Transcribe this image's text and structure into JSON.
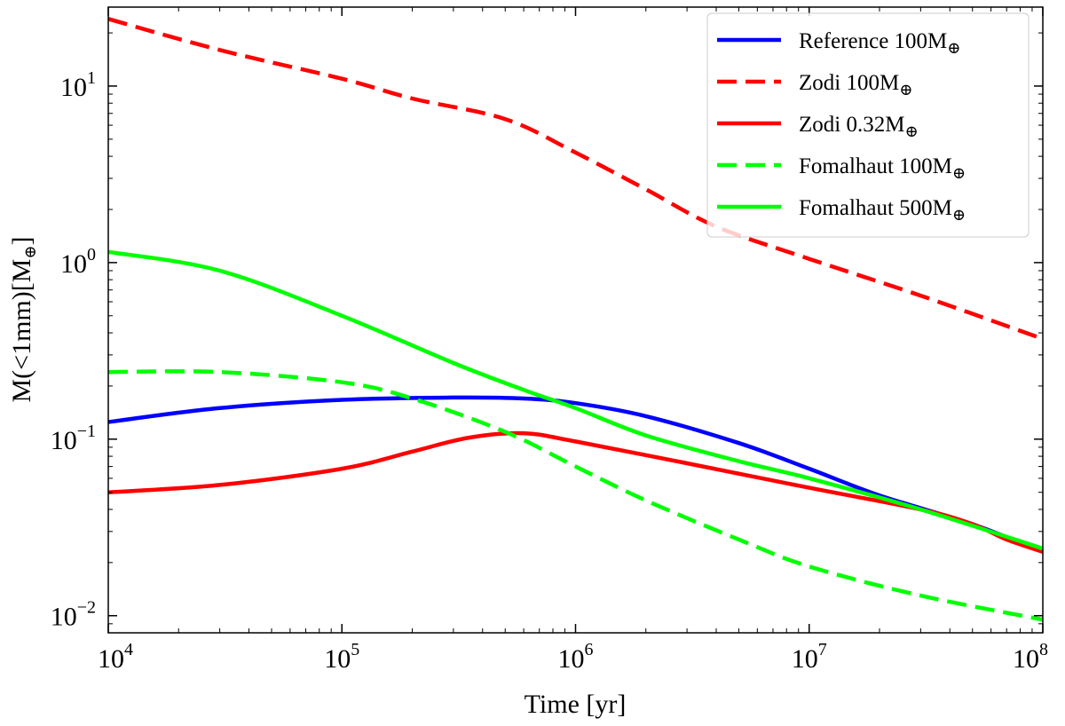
{
  "chart_data": {
    "type": "line",
    "xscale": "log",
    "yscale": "log",
    "xlim": [
      10000,
      100000000
    ],
    "ylim": [
      0.008,
      28
    ],
    "xlabel": "Time [yr]",
    "ylabel": {
      "prefix": "M(<1mm)[M",
      "sub": "⊕",
      "suffix": "]"
    },
    "x_ticks": [
      {
        "value": 10000,
        "base": "10",
        "exp": "4"
      },
      {
        "value": 100000,
        "base": "10",
        "exp": "5"
      },
      {
        "value": 1000000,
        "base": "10",
        "exp": "6"
      },
      {
        "value": 10000000,
        "base": "10",
        "exp": "7"
      },
      {
        "value": 100000000,
        "base": "10",
        "exp": "8"
      }
    ],
    "y_ticks": [
      {
        "value": 0.01,
        "base": "10",
        "exp": "−2"
      },
      {
        "value": 0.1,
        "base": "10",
        "exp": "−1"
      },
      {
        "value": 1,
        "base": "10",
        "exp": "0"
      },
      {
        "value": 10,
        "base": "10",
        "exp": "1"
      }
    ],
    "legend_position": "top-right",
    "series": [
      {
        "name": "Reference 100M⊕",
        "label_main": "Reference 100M",
        "label_sub": "⊕",
        "color": "#0000ff",
        "dash": "solid",
        "x": [
          10000,
          30000,
          100000,
          300000,
          600000,
          1000000,
          2000000,
          5000000,
          10000000,
          20000000,
          50000000,
          100000000
        ],
        "y": [
          0.125,
          0.15,
          0.167,
          0.172,
          0.17,
          0.16,
          0.135,
          0.095,
          0.068,
          0.048,
          0.033,
          0.023
        ]
      },
      {
        "name": "Zodi 100M⊕",
        "label_main": "Zodi 100M",
        "label_sub": "⊕",
        "color": "#ff0000",
        "dash": "dashed",
        "x": [
          10000,
          30000,
          100000,
          200000,
          500000,
          1000000,
          2000000,
          4000000,
          10000000,
          30000000,
          100000000
        ],
        "y": [
          24,
          16,
          11,
          8.5,
          6.5,
          4.2,
          2.6,
          1.6,
          1.05,
          0.65,
          0.37
        ]
      },
      {
        "name": "Zodi 0.32M⊕",
        "label_main": "Zodi 0.32M",
        "label_sub": "⊕",
        "color": "#ff0000",
        "dash": "solid",
        "x": [
          10000,
          30000,
          100000,
          200000,
          350000,
          600000,
          1000000,
          3000000,
          10000000,
          30000000,
          50000000,
          70000000,
          100000000
        ],
        "y": [
          0.05,
          0.055,
          0.068,
          0.085,
          0.102,
          0.108,
          0.097,
          0.073,
          0.053,
          0.04,
          0.033,
          0.027,
          0.023
        ]
      },
      {
        "name": "Fomalhaut 100M⊕",
        "label_main": "Fomalhaut 100M",
        "label_sub": "⊕",
        "color": "#00ff00",
        "dash": "dashed",
        "x": [
          10000,
          30000,
          100000,
          200000,
          500000,
          1000000,
          2000000,
          5000000,
          10000000,
          30000000,
          100000000
        ],
        "y": [
          0.24,
          0.24,
          0.21,
          0.17,
          0.11,
          0.07,
          0.045,
          0.027,
          0.019,
          0.013,
          0.0095
        ]
      },
      {
        "name": "Fomalhaut 500M⊕",
        "label_main": "Fomalhaut 500M",
        "label_sub": "⊕",
        "color": "#00ff00",
        "dash": "solid",
        "x": [
          10000,
          30000,
          100000,
          300000,
          600000,
          1000000,
          2000000,
          5000000,
          10000000,
          30000000,
          100000000
        ],
        "y": [
          1.15,
          0.9,
          0.5,
          0.27,
          0.19,
          0.15,
          0.105,
          0.075,
          0.06,
          0.04,
          0.024
        ]
      }
    ]
  }
}
